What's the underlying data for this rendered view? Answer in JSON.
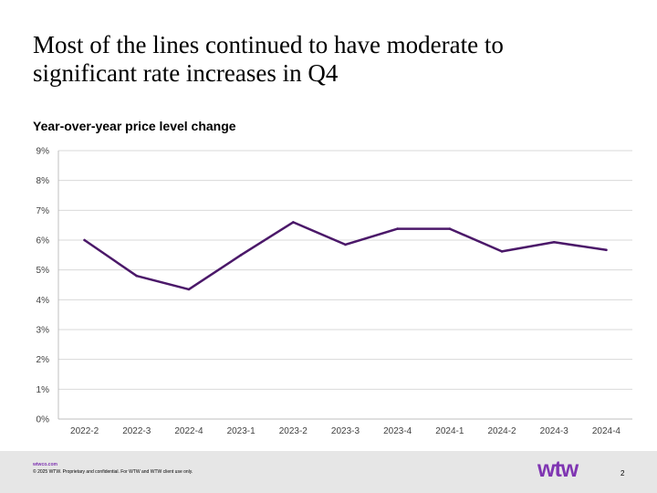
{
  "slide": {
    "title": "Most of the lines continued to have moderate to significant rate increases in Q4"
  },
  "chart_data": {
    "type": "line",
    "title": "Year-over-year price level change",
    "xlabel": "",
    "ylabel": "",
    "categories": [
      "2022-2",
      "2022-3",
      "2022-4",
      "2023-1",
      "2023-2",
      "2023-3",
      "2023-4",
      "2024-1",
      "2024-2",
      "2024-3",
      "2024-4"
    ],
    "series": [
      {
        "values": [
          6.0,
          4.8,
          4.35,
          5.5,
          6.6,
          5.85,
          6.38,
          6.38,
          5.62,
          5.93,
          5.67
        ]
      }
    ],
    "ylim": [
      0,
      9
    ],
    "yticks": [
      0,
      1,
      2,
      3,
      4,
      5,
      6,
      7,
      8,
      9
    ],
    "ytick_format": "%",
    "grid": true,
    "legend": "none",
    "line_color": "#4b1869",
    "grid_color": "#d9d9d9"
  },
  "footer": {
    "url": "wtwco.com",
    "copyright": "© 2025 WTW. Proprietary and confidential. For WTW and WTW client use only.",
    "logo_text": "wtw",
    "page_number": "2",
    "brand_color": "#7f35b2"
  }
}
